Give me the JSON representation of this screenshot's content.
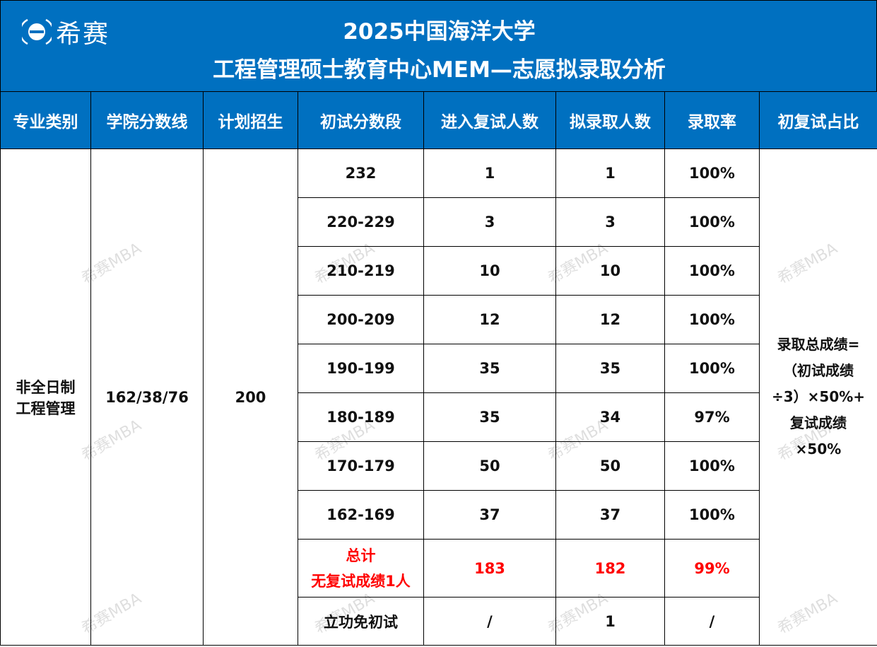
{
  "brand": {
    "logo_text": "希赛",
    "watermark": "希赛MBA"
  },
  "title": {
    "line1": "2025中国海洋大学",
    "line2": "工程管理硕士教育中心MEM—志愿拟录取分析"
  },
  "columns": [
    "专业类别",
    "学院分数线",
    "计划招生",
    "初试分数段",
    "进入复试人数",
    "拟录取人数",
    "录取率",
    "初复试占比"
  ],
  "major": {
    "line1": "非全日制",
    "line2": "工程管理"
  },
  "score_line": "162/38/76",
  "plan": "200",
  "rows": [
    {
      "range": "232",
      "retest": "1",
      "admit": "1",
      "rate": "100%"
    },
    {
      "range": "220-229",
      "retest": "3",
      "admit": "3",
      "rate": "100%"
    },
    {
      "range": "210-219",
      "retest": "10",
      "admit": "10",
      "rate": "100%"
    },
    {
      "range": "200-209",
      "retest": "12",
      "admit": "12",
      "rate": "100%"
    },
    {
      "range": "190-199",
      "retest": "35",
      "admit": "35",
      "rate": "100%"
    },
    {
      "range": "180-189",
      "retest": "35",
      "admit": "34",
      "rate": "97%"
    },
    {
      "range": "170-179",
      "retest": "50",
      "admit": "50",
      "rate": "100%"
    },
    {
      "range": "162-169",
      "retest": "37",
      "admit": "37",
      "rate": "100%"
    }
  ],
  "total": {
    "label1": "总计",
    "label2": "无复试成绩1人",
    "retest": "183",
    "admit": "182",
    "rate": "99%"
  },
  "exempt": {
    "label": "立功免初试",
    "retest": "/",
    "admit": "1",
    "rate": "/"
  },
  "formula": [
    "录取总成绩=",
    "（初试成绩",
    "÷3）×50%+",
    "复试成绩",
    "×50%"
  ],
  "colors": {
    "header_bg": "#0070c0",
    "highlight": "#ff0000"
  }
}
